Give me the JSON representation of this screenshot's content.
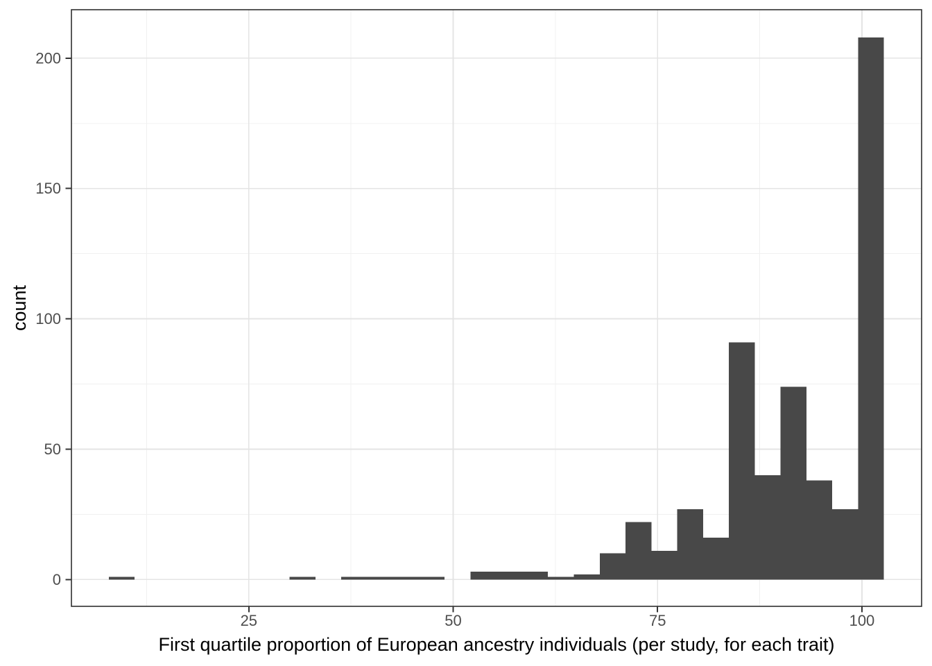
{
  "chart_data": {
    "type": "bar",
    "subtype": "histogram",
    "title": "",
    "xlabel": "First quartile proportion of European ancestry individuals (per study, for each trait)",
    "ylabel": "count",
    "legend": "none",
    "grid": "major+minor",
    "x_domain": [
      3.3,
      107.3
    ],
    "y_domain": [
      -10.3,
      218.6
    ],
    "x_major_ticks": [
      25,
      50,
      75,
      100
    ],
    "x_minor_ticks": [
      12.5,
      37.5,
      62.5,
      87.5
    ],
    "y_major_ticks": [
      0,
      50,
      100,
      150,
      200
    ],
    "y_minor_ticks": [
      25,
      75,
      125,
      175
    ],
    "bin_start": 7.86,
    "bin_width": 3.161,
    "counts": [
      1,
      0,
      0,
      0,
      0,
      0,
      0,
      1,
      0,
      1,
      1,
      1,
      1,
      0,
      3,
      3,
      3,
      1,
      2,
      10,
      22,
      11,
      27,
      16,
      91,
      40,
      74,
      38,
      27,
      208
    ],
    "colors": {
      "bar_fill": "#484848",
      "panel_border": "#2f2f2f",
      "grid_major": "#e4e4e4",
      "grid_minor": "#f0f0f0",
      "tick_mark": "#333333",
      "tick_label": "#4d4d4d",
      "axis_title": "#000000",
      "panel_background": "#ffffff"
    }
  }
}
